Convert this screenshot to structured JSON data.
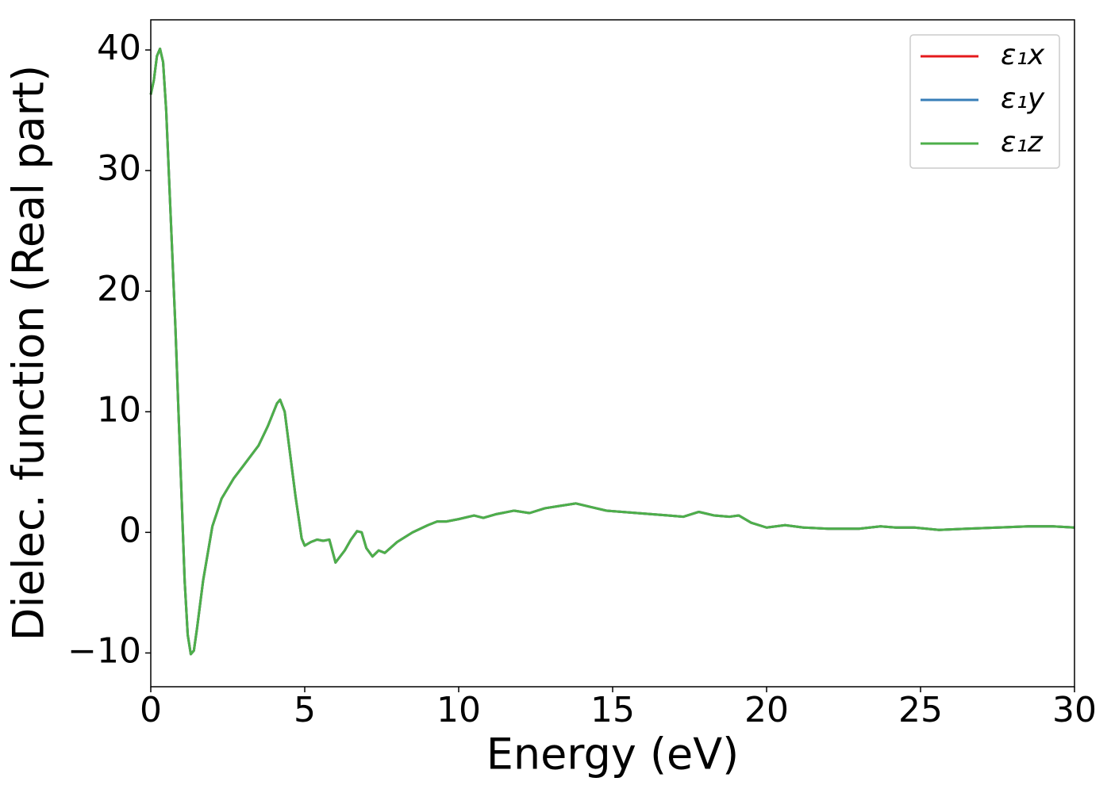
{
  "chart_data": {
    "type": "line",
    "xlabel": "Energy (eV)",
    "ylabel": "Dielec. function (Real part)",
    "x": [
      0,
      0.1,
      0.2,
      0.3,
      0.4,
      0.5,
      0.6,
      0.7,
      0.8,
      0.9,
      1.0,
      1.1,
      1.2,
      1.3,
      1.4,
      1.5,
      1.7,
      2.0,
      2.3,
      2.7,
      3.0,
      3.5,
      3.8,
      4.1,
      4.2,
      4.35,
      4.5,
      4.7,
      4.9,
      5.0,
      5.2,
      5.4,
      5.6,
      5.8,
      6.0,
      6.3,
      6.5,
      6.7,
      6.85,
      7.0,
      7.2,
      7.4,
      7.6,
      8.0,
      8.5,
      9.0,
      9.3,
      9.6,
      10.0,
      10.5,
      10.8,
      11.2,
      11.8,
      12.3,
      12.8,
      13.3,
      13.8,
      14.3,
      14.8,
      15.3,
      15.8,
      16.3,
      16.8,
      17.3,
      17.8,
      18.3,
      18.8,
      19.1,
      19.5,
      20.0,
      20.6,
      21.2,
      22.0,
      23.0,
      23.7,
      24.2,
      24.8,
      25.6,
      26.5,
      27.5,
      28.5,
      29.3,
      30.0
    ],
    "series": [
      {
        "name": "ε₁x",
        "color": "#e41a1c",
        "values": [
          36.3,
          37.5,
          39.5,
          40.1,
          39,
          35,
          29,
          23,
          17,
          10,
          3,
          -4,
          -8.5,
          -10.1,
          -9.8,
          -8,
          -4,
          0.5,
          2.8,
          4.5,
          5.5,
          7.2,
          8.8,
          10.7,
          11,
          10,
          7,
          3,
          -0.5,
          -1.1,
          -0.8,
          -0.6,
          -0.7,
          -0.6,
          -2.5,
          -1.5,
          -0.6,
          0.1,
          0,
          -1.3,
          -2,
          -1.5,
          -1.7,
          -0.8,
          0,
          0.6,
          0.9,
          0.9,
          1.1,
          1.4,
          1.2,
          1.5,
          1.8,
          1.6,
          2.0,
          2.2,
          2.4,
          2.1,
          1.8,
          1.7,
          1.6,
          1.5,
          1.4,
          1.3,
          1.7,
          1.4,
          1.3,
          1.4,
          0.8,
          0.4,
          0.6,
          0.4,
          0.3,
          0.3,
          0.5,
          0.4,
          0.4,
          0.2,
          0.3,
          0.4,
          0.5,
          0.5,
          0.4
        ]
      },
      {
        "name": "ε₁y",
        "color": "#377eb8",
        "values": [
          36.3,
          37.5,
          39.5,
          40.1,
          39,
          35,
          29,
          23,
          17,
          10,
          3,
          -4,
          -8.5,
          -10.1,
          -9.8,
          -8,
          -4,
          0.5,
          2.8,
          4.5,
          5.5,
          7.2,
          8.8,
          10.7,
          11,
          10,
          7,
          3,
          -0.5,
          -1.1,
          -0.8,
          -0.6,
          -0.7,
          -0.6,
          -2.5,
          -1.5,
          -0.6,
          0.1,
          0,
          -1.3,
          -2,
          -1.5,
          -1.7,
          -0.8,
          0,
          0.6,
          0.9,
          0.9,
          1.1,
          1.4,
          1.2,
          1.5,
          1.8,
          1.6,
          2.0,
          2.2,
          2.4,
          2.1,
          1.8,
          1.7,
          1.6,
          1.5,
          1.4,
          1.3,
          1.7,
          1.4,
          1.3,
          1.4,
          0.8,
          0.4,
          0.6,
          0.4,
          0.3,
          0.3,
          0.5,
          0.4,
          0.4,
          0.2,
          0.3,
          0.4,
          0.5,
          0.5,
          0.4
        ]
      },
      {
        "name": "ε₁z",
        "color": "#4daf4a",
        "values": [
          36.3,
          37.5,
          39.5,
          40.1,
          39,
          35,
          29,
          23,
          17,
          10,
          3,
          -4,
          -8.5,
          -10.1,
          -9.8,
          -8,
          -4,
          0.5,
          2.8,
          4.5,
          5.5,
          7.2,
          8.8,
          10.7,
          11,
          10,
          7,
          3,
          -0.5,
          -1.1,
          -0.8,
          -0.6,
          -0.7,
          -0.6,
          -2.5,
          -1.5,
          -0.6,
          0.1,
          0,
          -1.3,
          -2,
          -1.5,
          -1.7,
          -0.8,
          0,
          0.6,
          0.9,
          0.9,
          1.1,
          1.4,
          1.2,
          1.5,
          1.8,
          1.6,
          2.0,
          2.2,
          2.4,
          2.1,
          1.8,
          1.7,
          1.6,
          1.5,
          1.4,
          1.3,
          1.7,
          1.4,
          1.3,
          1.4,
          0.8,
          0.4,
          0.6,
          0.4,
          0.3,
          0.3,
          0.5,
          0.4,
          0.4,
          0.2,
          0.3,
          0.4,
          0.5,
          0.5,
          0.4
        ]
      }
    ],
    "xlim": [
      0,
      30
    ],
    "xticks": [
      0,
      5,
      10,
      15,
      20,
      25,
      30
    ],
    "ylim": [
      -12.8,
      42.5
    ],
    "yticks": [
      {
        "value": -10,
        "label": "−10"
      },
      0,
      10,
      20,
      30,
      40
    ],
    "grid": false,
    "legend": "upper right"
  }
}
